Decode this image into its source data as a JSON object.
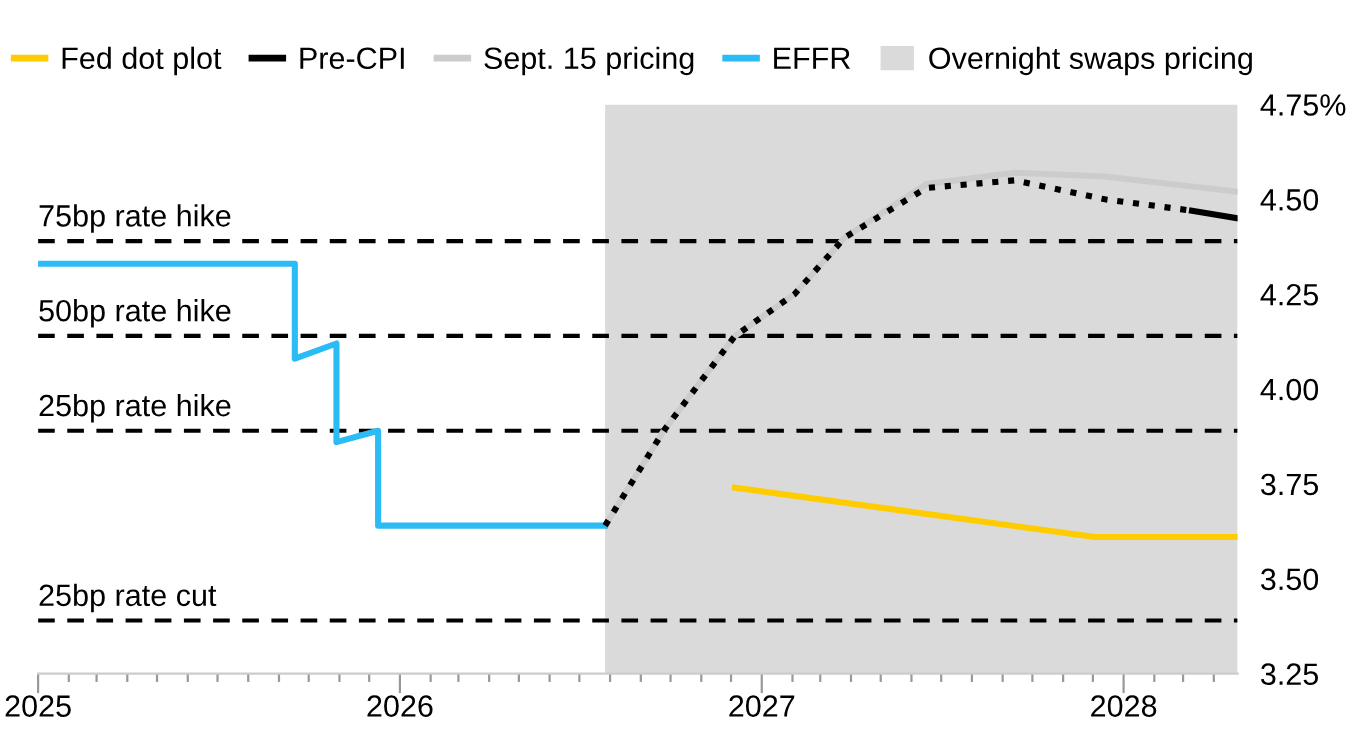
{
  "chart_data": {
    "type": "line",
    "xlim": [
      "2025-01-01",
      "2028-04-25"
    ],
    "xticks": [
      {
        "value": "2025-01-01",
        "label": "2025"
      },
      {
        "value": "2025-02-01",
        "label": null
      },
      {
        "value": "2025-03-01",
        "label": null
      },
      {
        "value": "2025-04-01",
        "label": null
      },
      {
        "value": "2025-05-01",
        "label": null
      },
      {
        "value": "2025-06-01",
        "label": null
      },
      {
        "value": "2025-07-01",
        "label": null
      },
      {
        "value": "2025-08-01",
        "label": null
      },
      {
        "value": "2025-09-01",
        "label": null
      },
      {
        "value": "2025-10-01",
        "label": null
      },
      {
        "value": "2025-11-01",
        "label": null
      },
      {
        "value": "2025-12-01",
        "label": null
      },
      {
        "value": "2026-01-01",
        "label": "2026"
      },
      {
        "value": "2026-02-01",
        "label": null
      },
      {
        "value": "2026-03-01",
        "label": null
      },
      {
        "value": "2026-04-01",
        "label": null
      },
      {
        "value": "2026-05-01",
        "label": null
      },
      {
        "value": "2026-06-01",
        "label": null
      },
      {
        "value": "2026-07-01",
        "label": null
      },
      {
        "value": "2026-08-01",
        "label": null
      },
      {
        "value": "2026-09-01",
        "label": null
      },
      {
        "value": "2026-10-01",
        "label": null
      },
      {
        "value": "2026-11-01",
        "label": null
      },
      {
        "value": "2026-12-01",
        "label": null
      },
      {
        "value": "2027-01-01",
        "label": "2027"
      },
      {
        "value": "2027-02-01",
        "label": null
      },
      {
        "value": "2027-03-01",
        "label": null
      },
      {
        "value": "2027-04-01",
        "label": null
      },
      {
        "value": "2027-05-01",
        "label": null
      },
      {
        "value": "2027-06-01",
        "label": null
      },
      {
        "value": "2027-07-01",
        "label": null
      },
      {
        "value": "2027-08-01",
        "label": null
      },
      {
        "value": "2027-09-01",
        "label": null
      },
      {
        "value": "2027-10-01",
        "label": null
      },
      {
        "value": "2027-11-01",
        "label": null
      },
      {
        "value": "2027-12-01",
        "label": null
      },
      {
        "value": "2028-01-01",
        "label": "2028"
      },
      {
        "value": "2028-02-01",
        "label": null
      },
      {
        "value": "2028-03-01",
        "label": null
      },
      {
        "value": "2028-04-01",
        "label": null
      }
    ],
    "ylim": [
      3.25,
      4.75
    ],
    "yticks": [
      3.25,
      {
        "value": 3.5,
        "label": "3.50"
      },
      3.75,
      {
        "value": 4.0,
        "label": "4.00"
      },
      4.25,
      {
        "value": 4.5,
        "label": "4.50"
      },
      {
        "value": 4.75,
        "label": "4.75%"
      }
    ],
    "grid": false,
    "legend": "top",
    "marker": "none",
    "series": [
      {
        "name": "Fed dot plot",
        "color": "#ffcc00",
        "line_style": "solid",
        "x": [
          "2026-12-05",
          "2027-12-03",
          "2028-04-25"
        ],
        "values": [
          3.74,
          3.61,
          3.61
        ]
      },
      {
        "name": "Pre-CPI",
        "color": "#000000",
        "line_style": "solid",
        "x": [
          "2028-03-10",
          "2028-04-25"
        ],
        "values": [
          4.47,
          4.45
        ]
      },
      {
        "name": "Sept. 15 pricing",
        "color": "#cccccc",
        "line_style": "solid",
        "x": [
          "2026-07-27",
          "2026-09-24",
          "2026-12-05",
          "2027-02-03",
          "2027-03-26",
          "2027-06-16",
          "2027-09-13",
          "2027-12-13",
          "2028-04-25"
        ],
        "values": [
          3.64,
          3.89,
          4.14,
          4.25,
          4.4,
          4.54,
          4.57,
          4.56,
          4.52
        ]
      },
      {
        "name": "EFFR",
        "color": "#2bbcf5",
        "line_style": "solid",
        "x": [
          "2025-01-01",
          "2025-09-17",
          "2025-09-17",
          "2025-10-29",
          "2025-10-29",
          "2025-12-10",
          "2025-12-10",
          "2026-07-27"
        ],
        "values": [
          4.33,
          4.33,
          4.08,
          4.12,
          3.86,
          3.89,
          3.64,
          3.64
        ]
      },
      {
        "color": "#000000",
        "line_style": "dotted",
        "x": [
          "2026-07-27",
          "2026-09-24",
          "2026-12-05",
          "2027-02-03",
          "2027-03-26",
          "2027-06-16",
          "2027-09-13",
          "2027-12-13",
          "2028-03-10"
        ],
        "values": [
          3.64,
          3.89,
          4.14,
          4.25,
          4.4,
          4.53,
          4.55,
          4.5,
          4.47
        ]
      }
    ],
    "bands": [
      {
        "axis": "x",
        "from": "2026-07-27",
        "to": "2028-04-25",
        "label": "Overnight swaps pricing",
        "color": "#dadada"
      }
    ],
    "ref_lines": [
      {
        "axis": "y",
        "value": 4.39,
        "label": "75bp rate hike",
        "color": "#000000",
        "line_style": "dashed"
      },
      {
        "axis": "y",
        "value": 4.14,
        "label": "50bp rate hike",
        "color": "#000000",
        "line_style": "dashed"
      },
      {
        "axis": "y",
        "value": 3.89,
        "label": "25bp rate hike",
        "color": "#000000",
        "line_style": "dashed"
      },
      {
        "axis": "y",
        "value": 3.39,
        "label": "25bp rate cut",
        "color": "#000000",
        "line_style": "dashed"
      }
    ]
  }
}
